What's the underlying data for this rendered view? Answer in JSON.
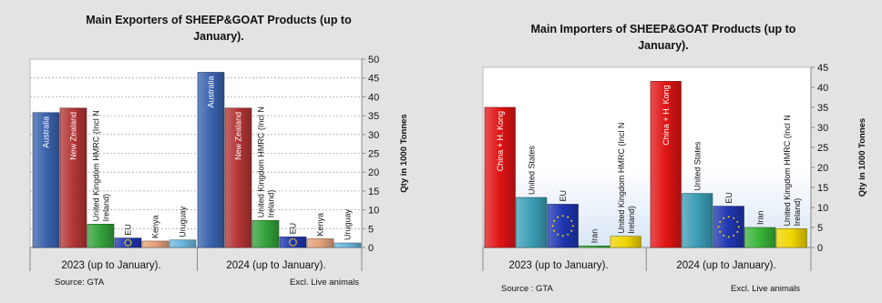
{
  "colors": {
    "page_bg": "#e3e3e3",
    "plot_bg": "#ffffff",
    "Australia": "#3a63ad",
    "New Zealand": "#b33535",
    "United Kingdom HMRC (Incl N Ireland)": "#33a23a",
    "EU": "#1f35b0",
    "EU_stars": "#f2d21a",
    "Kenya": "#e3a17a",
    "Uruguay": "#6ab7dd",
    "China + H. Kong": "#e01414",
    "United States": "#3b9db6",
    "Iran": "#38b338",
    "United Kingdom HMRC (Incl N Ireland) importer": "#f0d500"
  },
  "chart_data": [
    {
      "type": "bar",
      "title": "Main Exporters of SHEEP&GOAT Products (up to January).",
      "ylabel": "Qty in 1000 Tonnes",
      "ylim": [
        0,
        50
      ],
      "yticks": [
        0,
        5,
        10,
        15,
        20,
        25,
        30,
        35,
        40,
        45,
        50
      ],
      "grid": true,
      "categories": [
        "2023 (up to January).",
        "2024 (up to January)."
      ],
      "series": [
        {
          "name": "Australia",
          "values": [
            35.8,
            46.5
          ]
        },
        {
          "name": "New Zealand",
          "values": [
            37.0,
            37.0
          ]
        },
        {
          "name": "United Kingdom HMRC (Incl N Ireland)",
          "values": [
            6.2,
            7.2
          ]
        },
        {
          "name": "EU",
          "values": [
            2.5,
            2.8
          ]
        },
        {
          "name": "Kenya",
          "values": [
            1.7,
            2.3
          ]
        },
        {
          "name": "Uruguay",
          "values": [
            2.0,
            1.2
          ]
        }
      ],
      "source": "Source: GTA",
      "note": "Excl. Live animals"
    },
    {
      "type": "bar",
      "title": "Main Importers of SHEEP&GOAT Products (up to January).",
      "ylabel": "Qty in 1000 Tonnes",
      "ylim": [
        0,
        45
      ],
      "yticks": [
        0,
        5,
        10,
        15,
        20,
        25,
        30,
        35,
        40,
        45
      ],
      "grid": false,
      "categories": [
        "2023 (up to January).",
        "2024 (up to January)."
      ],
      "series": [
        {
          "name": "China + H. Kong",
          "values": [
            35.0,
            41.5
          ]
        },
        {
          "name": "United States",
          "values": [
            12.5,
            13.5
          ]
        },
        {
          "name": "EU",
          "values": [
            10.8,
            10.3
          ]
        },
        {
          "name": "Iran",
          "values": [
            0.4,
            5.0
          ]
        },
        {
          "name": "United Kingdom HMRC (Incl N Ireland)",
          "values": [
            2.8,
            4.7
          ]
        }
      ],
      "source": "Source : GTA",
      "note": "Excl. Live animals"
    }
  ]
}
